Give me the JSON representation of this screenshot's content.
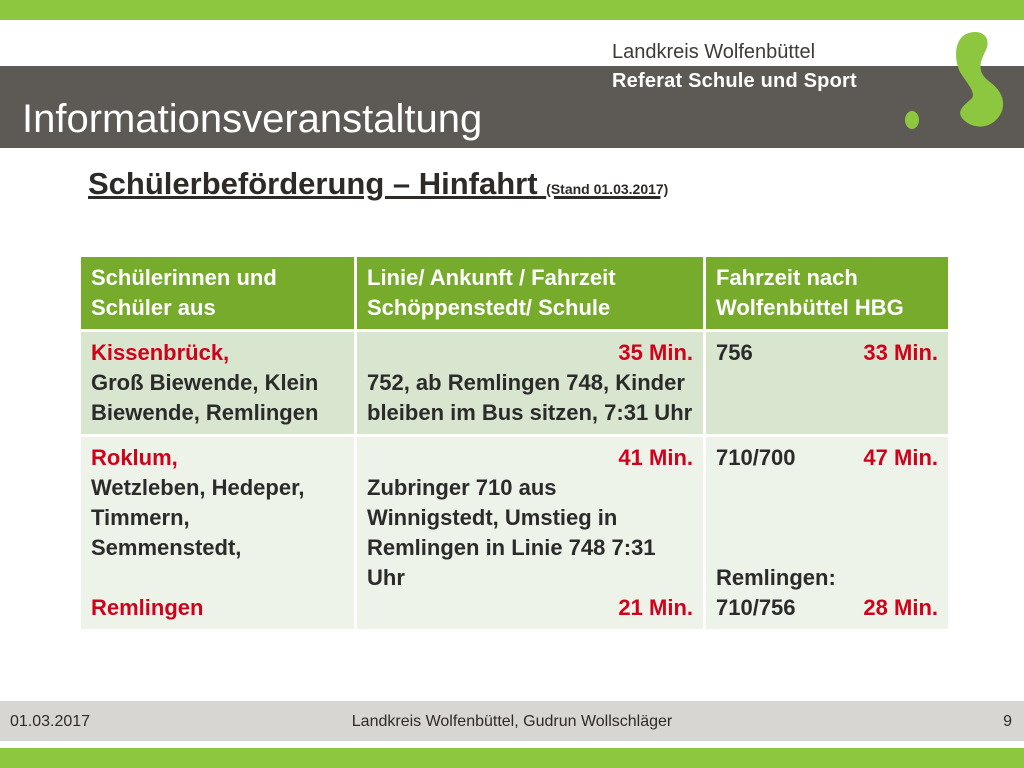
{
  "header": {
    "org_line1": "Landkreis Wolfenbüttel",
    "org_line2": "Referat Schule und Sport",
    "title": "Informationsveranstaltung"
  },
  "subtitle": {
    "main": "Schülerbeförderung – Hinfahrt",
    "stand": "(Stand 01.03.2017)"
  },
  "table": {
    "headers": [
      "Schülerinnen und Schüler aus",
      "Linie/ Ankunft / Fahrzeit Schöppenstedt/ Schule",
      "Fahrzeit nach Wolfenbüttel HBG"
    ],
    "rows": [
      {
        "origin_primary": "Kissenbrück,",
        "origin_secondary": "Groß Biewende, Klein Biewende, Remlingen",
        "line_duration": "35 Min.",
        "line_text": "752, ab Remlingen 748, Kinder bleiben im Bus sitzen,  7:31 Uhr",
        "hbg_line": "756",
        "hbg_duration": "33 Min."
      },
      {
        "origin_primary": "Roklum,",
        "origin_secondary": "Wetzleben, Hedeper, Timmern, Semmenstedt,",
        "origin_extra": "Remlingen",
        "line_duration": "41 Min.",
        "line_text": "Zubringer 710 aus Winnigstedt,  Umstieg in Remlingen in Linie 748 7:31 Uhr",
        "line_duration2": "21 Min.",
        "hbg_line": "710/700",
        "hbg_duration": "47 Min.",
        "hbg_extra_label": "Remlingen:",
        "hbg_extra_line": "710/756",
        "hbg_extra_duration": "28 Min."
      }
    ]
  },
  "footer": {
    "date": "01.03.2017",
    "center": "Landkreis Wolfenbüttel, Gudrun Wollschläger",
    "page": "9"
  },
  "colors": {
    "accent_green": "#8dc63f",
    "header_grey": "#5d5954",
    "table_header_green": "#77ab2c",
    "highlight_red": "#d0021b"
  }
}
